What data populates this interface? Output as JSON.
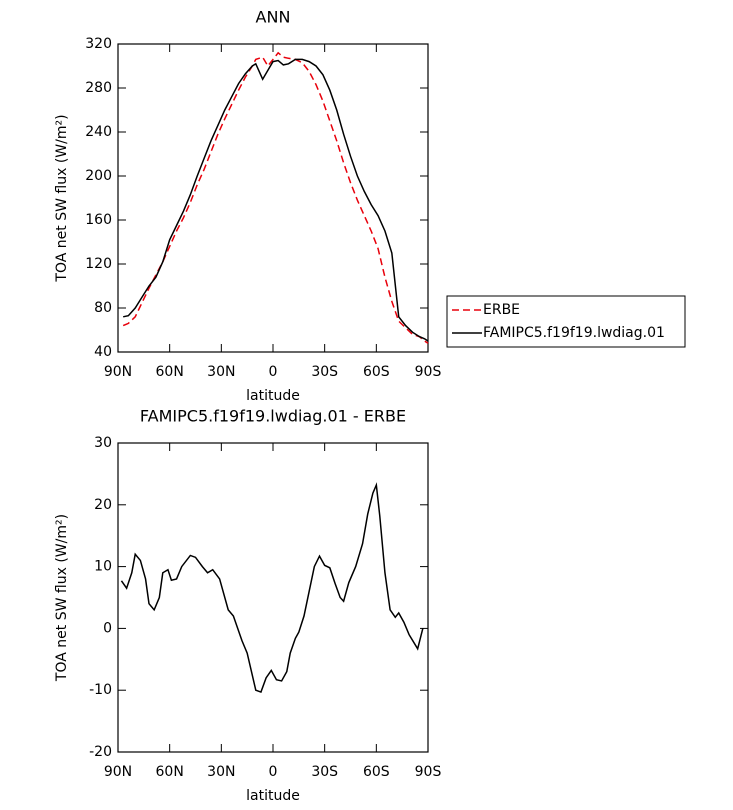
{
  "chart_data": [
    {
      "type": "line",
      "title": "ANN",
      "x_label": "latitude",
      "y_label": "TOA net SW flux (W/m²)",
      "x": [
        87,
        84,
        80,
        76,
        72,
        68,
        64,
        60,
        56,
        52,
        48,
        44,
        40,
        36,
        32,
        28,
        24,
        20,
        16,
        12,
        10,
        6,
        3,
        0,
        -3,
        -6,
        -9,
        -13,
        -17,
        -21,
        -25,
        -29,
        -33,
        -37,
        -41,
        -45,
        -49,
        -53,
        -57,
        -61,
        -65,
        -69,
        -73,
        -77,
        -81,
        -85,
        -88,
        -90
      ],
      "series": [
        {
          "name": "ERBE",
          "color": "#e8000b",
          "dashed": true,
          "values": [
            64,
            66,
            72,
            85,
            98,
            110,
            122,
            136,
            150,
            162,
            176,
            192,
            206,
            222,
            238,
            252,
            265,
            278,
            290,
            300,
            306,
            308,
            300,
            306,
            312,
            308,
            307,
            306,
            303,
            295,
            283,
            268,
            250,
            232,
            212,
            194,
            178,
            164,
            150,
            134,
            108,
            86,
            68,
            62,
            56,
            54,
            50,
            48
          ]
        },
        {
          "name": "FAMIPC5.f19f19.lwdiag.01",
          "color": "#000000",
          "dashed": false,
          "values": [
            72,
            73,
            80,
            90,
            100,
            108,
            122,
            142,
            155,
            168,
            183,
            200,
            216,
            232,
            246,
            260,
            272,
            284,
            293,
            300,
            302,
            288,
            296,
            304,
            305,
            301,
            302,
            306,
            306,
            304,
            300,
            292,
            278,
            260,
            238,
            218,
            200,
            186,
            174,
            164,
            150,
            130,
            72,
            64,
            58,
            54,
            52,
            50
          ]
        }
      ],
      "xlim": [
        90,
        -90
      ],
      "xticks": [
        {
          "value": 90,
          "label": "90N"
        },
        {
          "value": 60,
          "label": "60N"
        },
        {
          "value": 30,
          "label": "30N"
        },
        0,
        {
          "value": -30,
          "label": "30S"
        },
        {
          "value": -60,
          "label": "60S"
        },
        {
          "value": -90,
          "label": "90S"
        }
      ],
      "ylim": [
        40,
        320
      ],
      "yticks": [
        40,
        80,
        120,
        160,
        200,
        240,
        280,
        320
      ],
      "legend": "right"
    },
    {
      "type": "line",
      "title": "FAMIPC5.f19f19.lwdiag.01 - ERBE",
      "x_label": "latitude",
      "y_label": "TOA net SW flux (W/m²)",
      "x": [
        88,
        85,
        82,
        80,
        77,
        74,
        72,
        69,
        66,
        64,
        61,
        59,
        56,
        53,
        48,
        45,
        41,
        38,
        35,
        31,
        26,
        23,
        18,
        15,
        10,
        7,
        4,
        1,
        -2,
        -5,
        -8,
        -10,
        -13,
        -15,
        -18,
        -21,
        -24,
        -27,
        -30,
        -33,
        -36,
        -39,
        -41,
        -44,
        -48,
        -52,
        -55,
        -58,
        -60,
        -62,
        -65,
        -68,
        -71,
        -73,
        -76,
        -79,
        -84,
        -87
      ],
      "series": [
        {
          "color": "#000000",
          "dashed": false,
          "values": [
            7.7,
            6.5,
            9,
            12,
            11,
            8,
            4,
            3,
            5,
            9,
            9.5,
            7.8,
            8,
            10,
            11.8,
            11.5,
            10,
            9,
            9.5,
            8,
            3,
            2,
            -2,
            -4,
            -10,
            -10.3,
            -8,
            -6.8,
            -8.3,
            -8.5,
            -7,
            -4,
            -1.6,
            -0.6,
            2,
            6,
            10,
            11.7,
            10.2,
            9.8,
            7.3,
            5,
            4.4,
            7.4,
            10,
            13.7,
            18.5,
            21.9,
            23.2,
            18.2,
            9,
            3,
            1.8,
            2.5,
            1,
            -1,
            -3.3,
            0
          ]
        }
      ],
      "xlim": [
        90,
        -90
      ],
      "xticks": [
        {
          "value": 90,
          "label": "90N"
        },
        {
          "value": 60,
          "label": "60N"
        },
        {
          "value": 30,
          "label": "30N"
        },
        0,
        {
          "value": -30,
          "label": "30S"
        },
        {
          "value": -60,
          "label": "60S"
        },
        {
          "value": -90,
          "label": "90S"
        }
      ],
      "ylim": [
        -20,
        30
      ],
      "yticks": [
        -20,
        -10,
        0,
        10,
        20,
        30
      ]
    }
  ]
}
